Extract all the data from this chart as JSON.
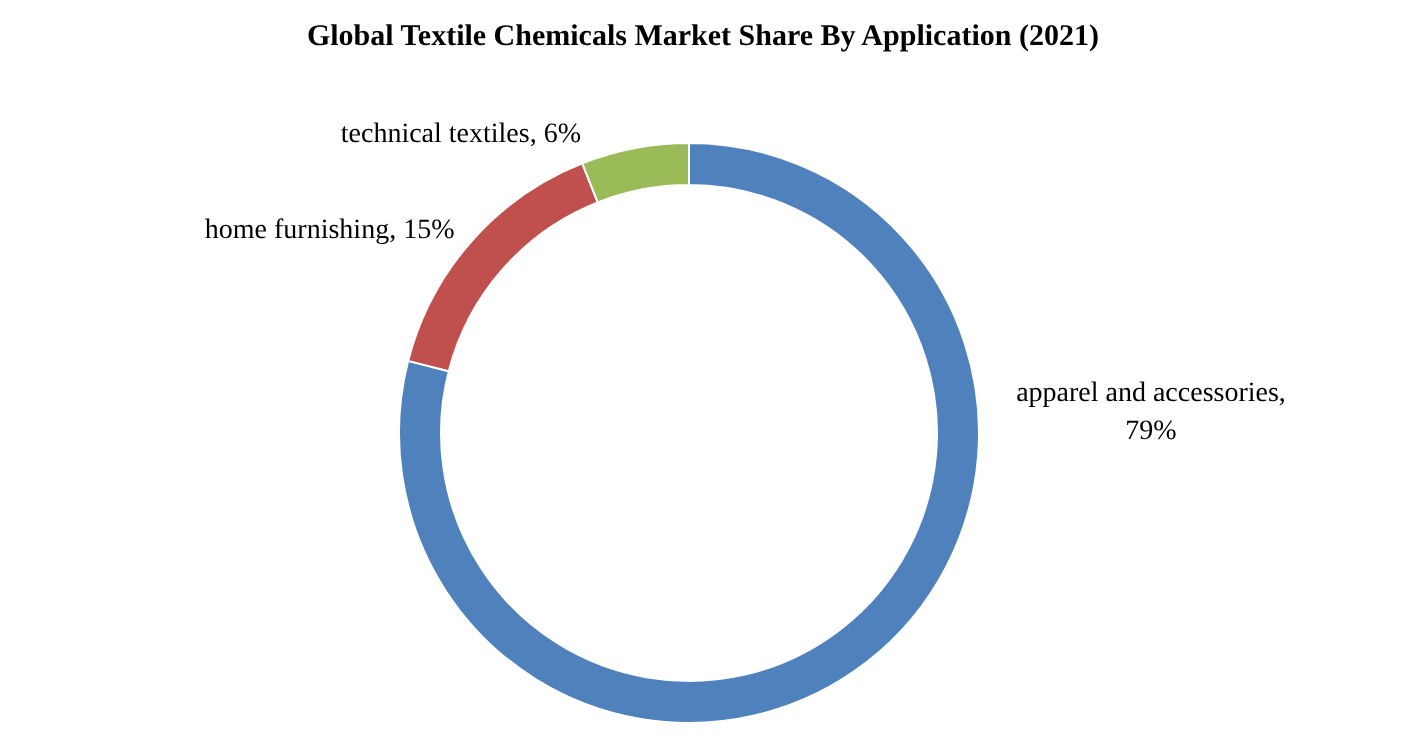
{
  "chart_data": {
    "type": "donut",
    "title": "Global Textile Chemicals Market Share By Application (2021)",
    "categories": [
      "apparel and accessories",
      "home furnishing",
      "technical textiles"
    ],
    "values": [
      79,
      15,
      6
    ],
    "colors": [
      "#4f81bd",
      "#c0504d",
      "#9bbb59"
    ],
    "value_labels": [
      ", 79%",
      ", 15%",
      ", 6%"
    ],
    "legend": false
  }
}
